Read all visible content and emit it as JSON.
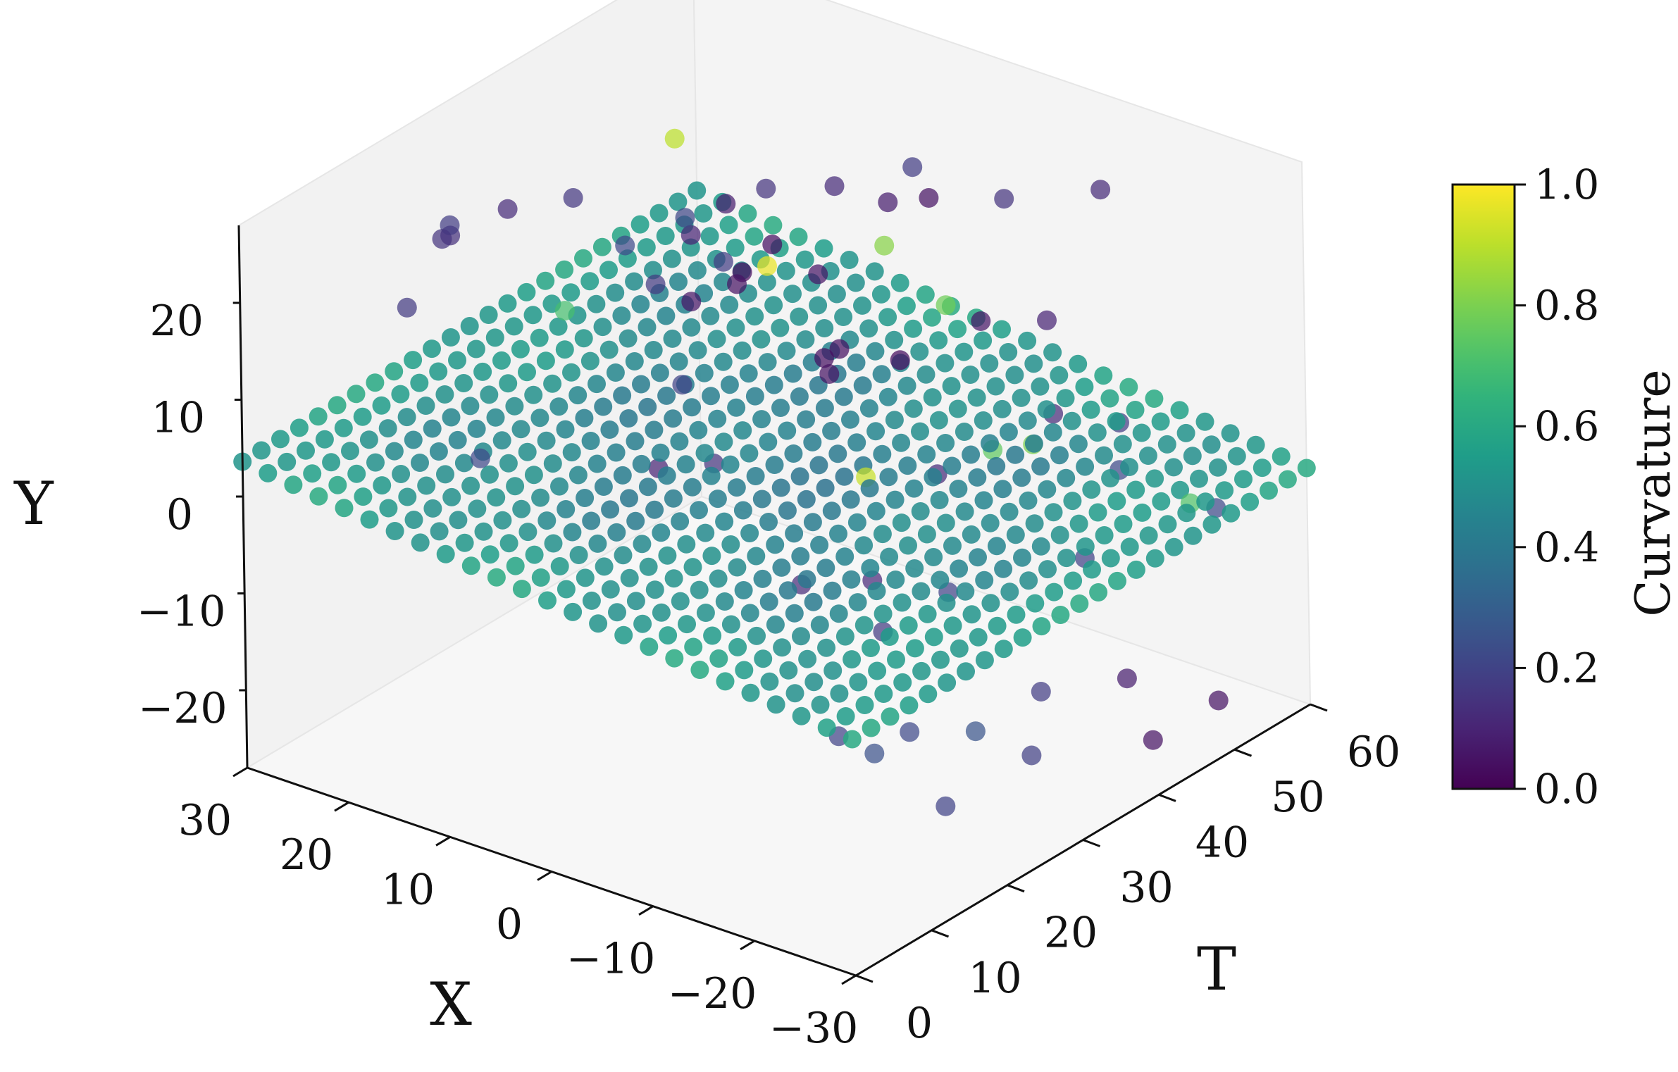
{
  "chart_data": {
    "type": "scatter",
    "projection": "3d",
    "title": "",
    "axes": {
      "x": {
        "label": "X",
        "lim": [
          -30,
          30
        ],
        "ticks": [
          30,
          20,
          10,
          0,
          -10,
          -20,
          -30
        ],
        "tick_labels": [
          "30",
          "20",
          "10",
          "0",
          "−10",
          "−20",
          "−30"
        ]
      },
      "t": {
        "label": "T",
        "lim": [
          0,
          60
        ],
        "ticks": [
          0,
          10,
          20,
          30,
          40,
          50,
          60
        ],
        "tick_labels": [
          "0",
          "10",
          "20",
          "30",
          "40",
          "50",
          "60"
        ]
      },
      "y": {
        "label": "Y",
        "lim": [
          -28,
          28
        ],
        "ticks": [
          20,
          10,
          0,
          -10,
          -20
        ],
        "tick_labels": [
          "20",
          "10",
          "0",
          "−10",
          "−20"
        ]
      }
    },
    "colorbar": {
      "label": "Curvature",
      "colormap": "viridis",
      "lim": [
        0,
        1
      ],
      "ticks": [
        1.0,
        0.8,
        0.6,
        0.4,
        0.2,
        0.0
      ],
      "tick_labels": [
        "1.0",
        "0.8",
        "0.6",
        "0.4",
        "0.2",
        "0.0"
      ]
    },
    "grid": false,
    "surface_sheet": {
      "description_of_rule": "sheet of points on X x T grid, Y = 0.12 * X",
      "x_values": [
        -30,
        -27.5,
        -25,
        -22.5,
        -20,
        -17.5,
        -15,
        -12.5,
        -10,
        -7.5,
        -5,
        -2.5,
        0,
        2.5,
        5,
        7.5,
        10,
        12.5,
        15,
        17.5,
        20,
        22.5,
        25,
        27.5,
        30
      ],
      "t_values": [
        0,
        2.5,
        5,
        7.5,
        10,
        12.5,
        15,
        17.5,
        20,
        22.5,
        25,
        27.5,
        30,
        32.5,
        35,
        37.5,
        40,
        42.5,
        45,
        47.5,
        50,
        52.5,
        55,
        57.5,
        60
      ],
      "y_slope": 0.12,
      "curvature_base": 0.42,
      "curvature_edge_extra": 0.14
    },
    "outliers": [
      {
        "x": 22,
        "t": 16,
        "y": 22,
        "c": 0.15
      },
      {
        "x": 25,
        "t": 21,
        "y": 20,
        "c": 0.18
      },
      {
        "x": 20,
        "t": 22,
        "y": 23,
        "c": 0.12
      },
      {
        "x": 18,
        "t": 6,
        "y": 21,
        "c": 0.17
      },
      {
        "x": 15,
        "t": 24,
        "y": 25,
        "c": 0.16
      },
      {
        "x": 28,
        "t": 25,
        "y": 16,
        "c": 0.14
      },
      {
        "x": 10,
        "t": 32,
        "y": 21,
        "c": 0.21
      },
      {
        "x": 8,
        "t": 40,
        "y": 21,
        "c": 0.15
      },
      {
        "x": 4,
        "t": 29,
        "y": 20,
        "c": 0.18
      },
      {
        "x": 5,
        "t": 45,
        "y": 20,
        "c": 0.12
      },
      {
        "x": -2,
        "t": 46,
        "y": 24,
        "c": 0.18
      },
      {
        "x": -8,
        "t": 50,
        "y": 21,
        "c": 0.15
      },
      {
        "x": 16,
        "t": 32,
        "y": 16,
        "c": 0.22
      },
      {
        "x": 2,
        "t": 48,
        "y": 18,
        "c": 0.08
      },
      {
        "x": 8,
        "t": 36,
        "y": 13,
        "c": 0.05
      },
      {
        "x": -10,
        "t": 60,
        "y": 18,
        "c": 0.12
      },
      {
        "x": 12,
        "t": 46,
        "y": 11,
        "c": 0.04
      },
      {
        "x": 6,
        "t": 44,
        "y": 11,
        "c": 0.06
      },
      {
        "x": 12,
        "t": 42,
        "y": 10,
        "c": 0.03
      },
      {
        "x": 4,
        "t": 56,
        "y": 14,
        "c": 0.05
      },
      {
        "x": 10,
        "t": 28,
        "y": 16,
        "c": 0.17
      },
      {
        "x": 8,
        "t": 30,
        "y": 14,
        "c": 0.06
      },
      {
        "x": 12,
        "t": 40,
        "y": 18,
        "c": 0.08
      },
      {
        "x": 14,
        "t": 38,
        "y": 15,
        "c": 0.1
      },
      {
        "x": 14,
        "t": 10,
        "y": 5,
        "c": 0.22
      },
      {
        "x": 6,
        "t": 26,
        "y": 8,
        "c": 0.2
      },
      {
        "x": 4,
        "t": 44,
        "y": 4,
        "c": 0.04
      },
      {
        "x": 2,
        "t": 40,
        "y": 4,
        "c": 0.05
      },
      {
        "x": -2,
        "t": 44,
        "y": 5,
        "c": 0.03
      },
      {
        "x": -4,
        "t": 52,
        "y": 6,
        "c": 0.06
      },
      {
        "x": 6,
        "t": 30,
        "y": -2,
        "c": 0.15
      },
      {
        "x": 4,
        "t": 42,
        "y": 4,
        "c": 0.04
      },
      {
        "x": -6,
        "t": 58,
        "y": 4,
        "c": 0.1
      },
      {
        "x": -8,
        "t": 56,
        "y": -4,
        "c": 0.12
      },
      {
        "x": 10,
        "t": 28,
        "y": -3,
        "c": 0.1
      },
      {
        "x": -4,
        "t": 28,
        "y": -10,
        "c": 0.12
      },
      {
        "x": -8,
        "t": 32,
        "y": -10,
        "c": 0.11
      },
      {
        "x": -12,
        "t": 28,
        "y": -12,
        "c": 0.17
      },
      {
        "x": -14,
        "t": 34,
        "y": -10,
        "c": 0.2
      },
      {
        "x": -20,
        "t": 44,
        "y": -9,
        "c": 0.2
      },
      {
        "x": -24,
        "t": 56,
        "y": -8,
        "c": 0.22
      },
      {
        "x": -10,
        "t": 62,
        "y": -7,
        "c": 0.18
      },
      {
        "x": -16,
        "t": 54,
        "y": -6,
        "c": 0.22
      },
      {
        "x": -4,
        "t": 46,
        "y": -7,
        "c": 0.12
      },
      {
        "x": -16,
        "t": 26,
        "y": -20,
        "c": 0.22
      },
      {
        "x": -14,
        "t": 24,
        "y": -22,
        "c": 0.25
      },
      {
        "x": -12,
        "t": 22,
        "y": -20,
        "c": 0.2
      },
      {
        "x": -18,
        "t": 32,
        "y": -22,
        "c": 0.26
      },
      {
        "x": -22,
        "t": 34,
        "y": -24,
        "c": 0.19
      },
      {
        "x": -20,
        "t": 38,
        "y": -20,
        "c": 0.18
      },
      {
        "x": -24,
        "t": 44,
        "y": -20,
        "c": 0.08
      },
      {
        "x": -28,
        "t": 42,
        "y": -24,
        "c": 0.05
      },
      {
        "x": -30,
        "t": 48,
        "y": -22,
        "c": 0.05
      },
      {
        "x": -24,
        "t": 20,
        "y": -22,
        "c": 0.2
      },
      {
        "x": 8,
        "t": 40,
        "y": 13,
        "c": 0.97
      },
      {
        "x": 20,
        "t": 44,
        "y": 20,
        "c": 0.9
      },
      {
        "x": -6,
        "t": 34,
        "y": -1,
        "c": 0.92
      },
      {
        "x": -12,
        "t": 48,
        "y": -2,
        "c": 0.8
      },
      {
        "x": 10,
        "t": 58,
        "y": 6,
        "c": 0.82
      },
      {
        "x": -8,
        "t": 48,
        "y": -4,
        "c": 0.75
      },
      {
        "x": 4,
        "t": 58,
        "y": 2,
        "c": 0.78
      },
      {
        "x": 16,
        "t": 24,
        "y": 13,
        "c": 0.7
      },
      {
        "x": -26,
        "t": 50,
        "y": -4,
        "c": 0.72
      }
    ]
  }
}
